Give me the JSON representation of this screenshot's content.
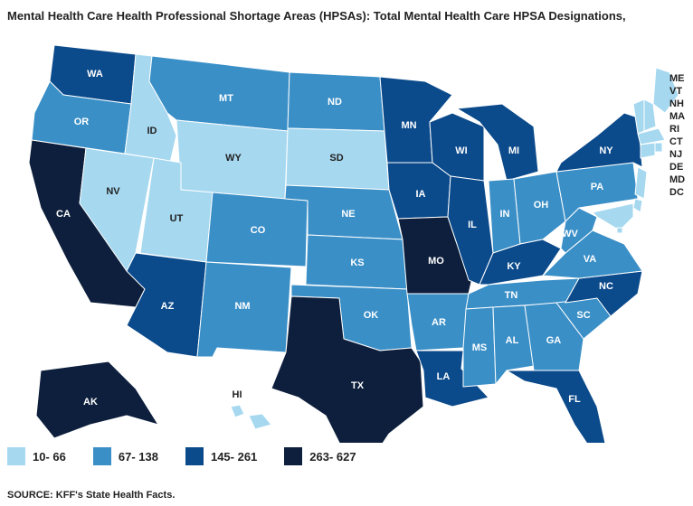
{
  "title": "Mental Health Care Health Professional Shortage Areas (HPSAs): Total Mental Health Care HPSA Designations,",
  "source": "SOURCE: KFF's State Health Facts.",
  "legend": [
    {
      "label": "10- 66",
      "color": "#a6d8f0"
    },
    {
      "label": "67- 138",
      "color": "#3a8fc7"
    },
    {
      "label": "145- 261",
      "color": "#0b4a8b"
    },
    {
      "label": "263- 627",
      "color": "#0d1f3c"
    }
  ],
  "states": [
    {
      "abbr": "WA",
      "bin": 2
    },
    {
      "abbr": "OR",
      "bin": 1
    },
    {
      "abbr": "CA",
      "bin": 3
    },
    {
      "abbr": "NV",
      "bin": 0
    },
    {
      "abbr": "ID",
      "bin": 0
    },
    {
      "abbr": "MT",
      "bin": 1
    },
    {
      "abbr": "WY",
      "bin": 0
    },
    {
      "abbr": "UT",
      "bin": 0
    },
    {
      "abbr": "AZ",
      "bin": 2
    },
    {
      "abbr": "CO",
      "bin": 1
    },
    {
      "abbr": "NM",
      "bin": 1
    },
    {
      "abbr": "ND",
      "bin": 1
    },
    {
      "abbr": "SD",
      "bin": 0
    },
    {
      "abbr": "NE",
      "bin": 1
    },
    {
      "abbr": "KS",
      "bin": 1
    },
    {
      "abbr": "OK",
      "bin": 1
    },
    {
      "abbr": "TX",
      "bin": 3
    },
    {
      "abbr": "MN",
      "bin": 2
    },
    {
      "abbr": "IA",
      "bin": 2
    },
    {
      "abbr": "MO",
      "bin": 3
    },
    {
      "abbr": "AR",
      "bin": 1
    },
    {
      "abbr": "LA",
      "bin": 2
    },
    {
      "abbr": "WI",
      "bin": 2
    },
    {
      "abbr": "IL",
      "bin": 2
    },
    {
      "abbr": "MI",
      "bin": 2
    },
    {
      "abbr": "IN",
      "bin": 1
    },
    {
      "abbr": "OH",
      "bin": 1
    },
    {
      "abbr": "KY",
      "bin": 2
    },
    {
      "abbr": "TN",
      "bin": 1
    },
    {
      "abbr": "MS",
      "bin": 1
    },
    {
      "abbr": "AL",
      "bin": 1
    },
    {
      "abbr": "GA",
      "bin": 1
    },
    {
      "abbr": "FL",
      "bin": 2
    },
    {
      "abbr": "SC",
      "bin": 1
    },
    {
      "abbr": "NC",
      "bin": 2
    },
    {
      "abbr": "VA",
      "bin": 1
    },
    {
      "abbr": "WV",
      "bin": 1
    },
    {
      "abbr": "PA",
      "bin": 1
    },
    {
      "abbr": "NY",
      "bin": 2
    },
    {
      "abbr": "ME",
      "bin": 0
    },
    {
      "abbr": "VT",
      "bin": 0
    },
    {
      "abbr": "NH",
      "bin": 0
    },
    {
      "abbr": "MA",
      "bin": 0
    },
    {
      "abbr": "RI",
      "bin": 0
    },
    {
      "abbr": "CT",
      "bin": 0
    },
    {
      "abbr": "NJ",
      "bin": 0
    },
    {
      "abbr": "DE",
      "bin": 0
    },
    {
      "abbr": "MD",
      "bin": 0
    },
    {
      "abbr": "DC",
      "bin": 0
    },
    {
      "abbr": "AK",
      "bin": 3
    },
    {
      "abbr": "HI",
      "bin": 0
    }
  ]
}
